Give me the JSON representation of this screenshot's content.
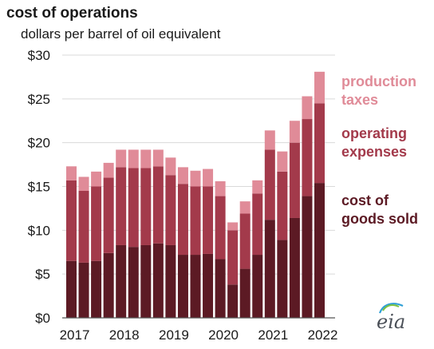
{
  "chart_data": {
    "type": "bar",
    "stacked": true,
    "title": "cost of operations",
    "subtitle": "dollars per barrel of oil equivalent",
    "ylim": [
      0,
      30
    ],
    "yticks": [
      "$0",
      "$5",
      "$10",
      "$15",
      "$20",
      "$25",
      "$30"
    ],
    "ytick_values": [
      0,
      5,
      10,
      15,
      20,
      25,
      30
    ],
    "x_year_labels": [
      "2017",
      "2018",
      "2019",
      "2020",
      "2021",
      "2022"
    ],
    "categories": [
      "2017Q1",
      "2017Q2",
      "2017Q3",
      "2017Q4",
      "2018Q1",
      "2018Q2",
      "2018Q3",
      "2018Q4",
      "2019Q1",
      "2019Q2",
      "2019Q3",
      "2019Q4",
      "2020Q1",
      "2020Q2",
      "2020Q3",
      "2020Q4",
      "2021Q1",
      "2021Q2",
      "2021Q3",
      "2021Q4",
      "2022Q1"
    ],
    "series": [
      {
        "name": "cost of goods sold",
        "color": "#5c1a24",
        "values": [
          6.5,
          6.3,
          6.5,
          7.4,
          8.3,
          8.1,
          8.3,
          8.5,
          8.3,
          7.2,
          7.2,
          7.3,
          6.7,
          3.8,
          5.6,
          7.2,
          11.2,
          8.9,
          11.4,
          13.9,
          15.4
        ]
      },
      {
        "name": "operating expenses",
        "color": "#a33a4b",
        "values": [
          9.2,
          8.2,
          8.5,
          8.6,
          8.9,
          9.0,
          8.8,
          8.8,
          8.0,
          8.1,
          7.8,
          7.7,
          7.2,
          6.2,
          6.3,
          7.0,
          8.0,
          7.8,
          8.6,
          8.8,
          9.1
        ]
      },
      {
        "name": "production taxes",
        "color": "#e08b98",
        "values": [
          1.6,
          1.6,
          1.7,
          1.7,
          2.0,
          2.1,
          2.1,
          1.9,
          2.0,
          1.9,
          1.8,
          2.0,
          1.7,
          0.9,
          1.4,
          1.5,
          2.2,
          2.3,
          2.5,
          2.6,
          3.6
        ]
      }
    ],
    "grid": true,
    "legend_placement": "right, labels aligned with stack segments"
  },
  "logo": {
    "text": "eia",
    "icon": "eia-logo-icon"
  }
}
